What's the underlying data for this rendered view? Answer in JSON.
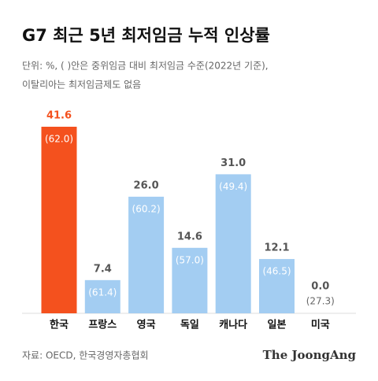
{
  "chart_data": {
    "type": "bar",
    "title": "G7 최근 5년 최저임금 누적 인상률",
    "subtitle": [
      "단위: %, ( )안은 중위임금 대비 최저임금 수준(2022년 기준),",
      "이탈리아는 최저임금제도 없음"
    ],
    "categories": [
      "한국",
      "프랑스",
      "영국",
      "독일",
      "캐나다",
      "일본",
      "미국"
    ],
    "values": [
      41.6,
      7.4,
      26.0,
      14.6,
      31.0,
      12.1,
      0.0
    ],
    "value_labels": [
      "41.6",
      "7.4",
      "26.0",
      "14.6",
      "31.0",
      "12.1",
      "0.0"
    ],
    "ratio_values": [
      62.0,
      61.4,
      60.2,
      57.0,
      49.4,
      46.5,
      27.3
    ],
    "ratio_labels": [
      "(62.0)",
      "(61.4)",
      "(60.2)",
      "(57.0)",
      "(49.4)",
      "(46.5)",
      "(27.3)"
    ],
    "colors": [
      "#f4511e",
      "#a3cdf2",
      "#a3cdf2",
      "#a3cdf2",
      "#a3cdf2",
      "#a3cdf2",
      "#a3cdf2"
    ],
    "label_colors": [
      "#f4511e",
      "#555555",
      "#555555",
      "#555555",
      "#555555",
      "#555555",
      "#555555"
    ],
    "source": "자료: OECD, 한국경영자총협회",
    "brand": "The JoongAng"
  }
}
